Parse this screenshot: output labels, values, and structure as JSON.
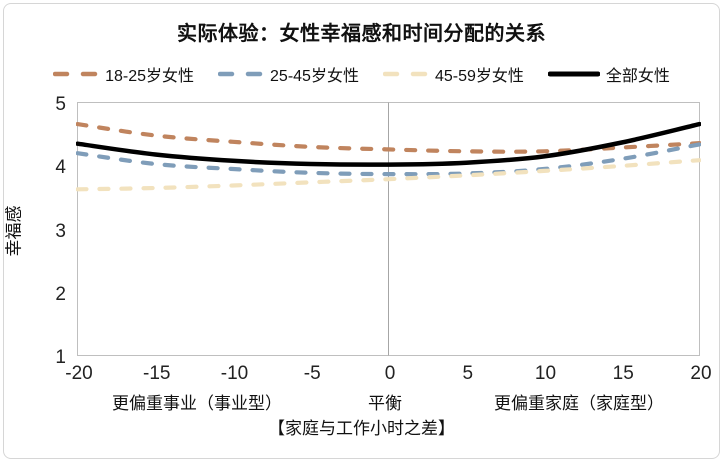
{
  "chart_data": {
    "type": "line",
    "title": "实际体验：女性幸福感和时间分配的关系",
    "ylabel": "幸福感",
    "xlabel": "【家庭与工作小时之差】",
    "xlim": [
      -20,
      20
    ],
    "ylim": [
      1,
      5
    ],
    "x_ticks": [
      -20,
      -15,
      -10,
      -5,
      0,
      5,
      10,
      15,
      20
    ],
    "y_ticks": [
      1,
      2,
      3,
      4,
      5
    ],
    "x_zone_labels": [
      "更偏重事业（事业型）",
      "平衡",
      "更偏重家庭（家庭型）"
    ],
    "legend_position": "top",
    "grid": "vertical-zero-line-only",
    "x": [
      -20,
      -15,
      -10,
      -5,
      0,
      5,
      10,
      15,
      20
    ],
    "series": [
      {
        "name": "18-25岁女性",
        "color": "#C0845E",
        "style": "dashed",
        "values": [
          4.65,
          4.47,
          4.37,
          4.29,
          4.25,
          4.22,
          4.22,
          4.28,
          4.35
        ]
      },
      {
        "name": "25-45岁女性",
        "color": "#7F9DB9",
        "style": "dashed",
        "values": [
          4.19,
          4.02,
          3.94,
          3.88,
          3.86,
          3.87,
          3.94,
          4.1,
          4.33
        ]
      },
      {
        "name": "45-59岁女性",
        "color": "#F2E2BE",
        "style": "dashed",
        "values": [
          3.62,
          3.64,
          3.68,
          3.73,
          3.78,
          3.84,
          3.91,
          3.99,
          4.08
        ]
      },
      {
        "name": "全部女性",
        "color": "#000000",
        "style": "solid",
        "values": [
          4.34,
          4.17,
          4.07,
          4.02,
          4.01,
          4.04,
          4.14,
          4.36,
          4.65
        ]
      }
    ]
  },
  "theme": {
    "frame_border": "#d6d6d6",
    "plot_border": "#bfbfbf",
    "zero_line": "#a6a6a6",
    "text": "#111111"
  }
}
